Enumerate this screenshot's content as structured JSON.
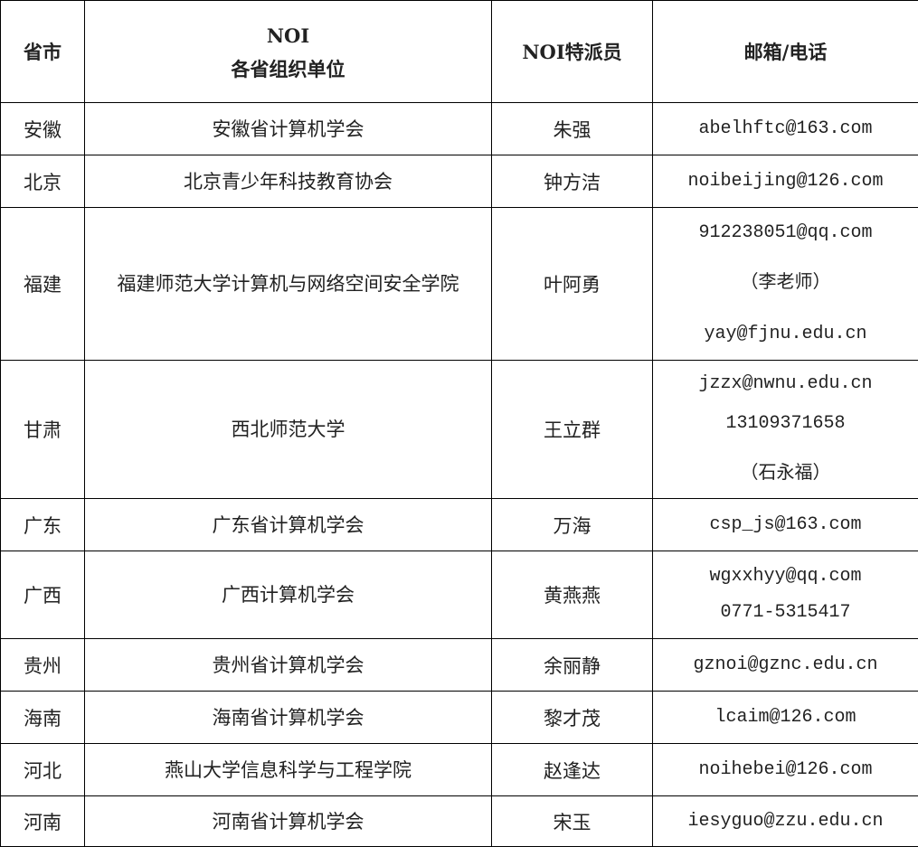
{
  "header": {
    "province": "省市",
    "org_line1": "NOI",
    "org_line2": "各省组织单位",
    "envoy": "NOI特派员",
    "contact": "邮箱/电话"
  },
  "rows": [
    {
      "province": "安徽",
      "org": "安徽省计算机学会",
      "envoy": "朱强",
      "contact": [
        "abelhftc@163.com"
      ]
    },
    {
      "province": "北京",
      "org": "北京青少年科技教育协会",
      "envoy": "钟方洁",
      "contact": [
        "noibeijing@126.com"
      ]
    },
    {
      "province": "福建",
      "org": "福建师范大学计算机与网络空间安全学院",
      "envoy": "叶阿勇",
      "contact": [
        "912238051@qq.com",
        "（李老师）",
        "yay@fjnu.edu.cn"
      ]
    },
    {
      "province": "甘肃",
      "org": "西北师范大学",
      "envoy": "王立群",
      "contact": [
        "jzzx@nwnu.edu.cn",
        "13109371658",
        "（石永福）"
      ]
    },
    {
      "province": "广东",
      "org": "广东省计算机学会",
      "envoy": "万海",
      "contact": [
        "csp_js@163.com"
      ]
    },
    {
      "province": "广西",
      "org": "广西计算机学会",
      "envoy": "黄燕燕",
      "contact": [
        "wgxxhyy@qq.com",
        "0771-5315417"
      ]
    },
    {
      "province": "贵州",
      "org": "贵州省计算机学会",
      "envoy": "余丽静",
      "contact": [
        "gznoi@gznc.edu.cn"
      ]
    },
    {
      "province": "海南",
      "org": "海南省计算机学会",
      "envoy": "黎才茂",
      "contact": [
        "lcaim@126.com"
      ]
    },
    {
      "province": "河北",
      "org": "燕山大学信息科学与工程学院",
      "envoy": "赵逢达",
      "contact": [
        "noihebei@126.com"
      ]
    },
    {
      "province": "河南",
      "org": "河南省计算机学会",
      "envoy": "宋玉",
      "contact": [
        "iesyguo@zzu.edu.cn"
      ]
    }
  ]
}
